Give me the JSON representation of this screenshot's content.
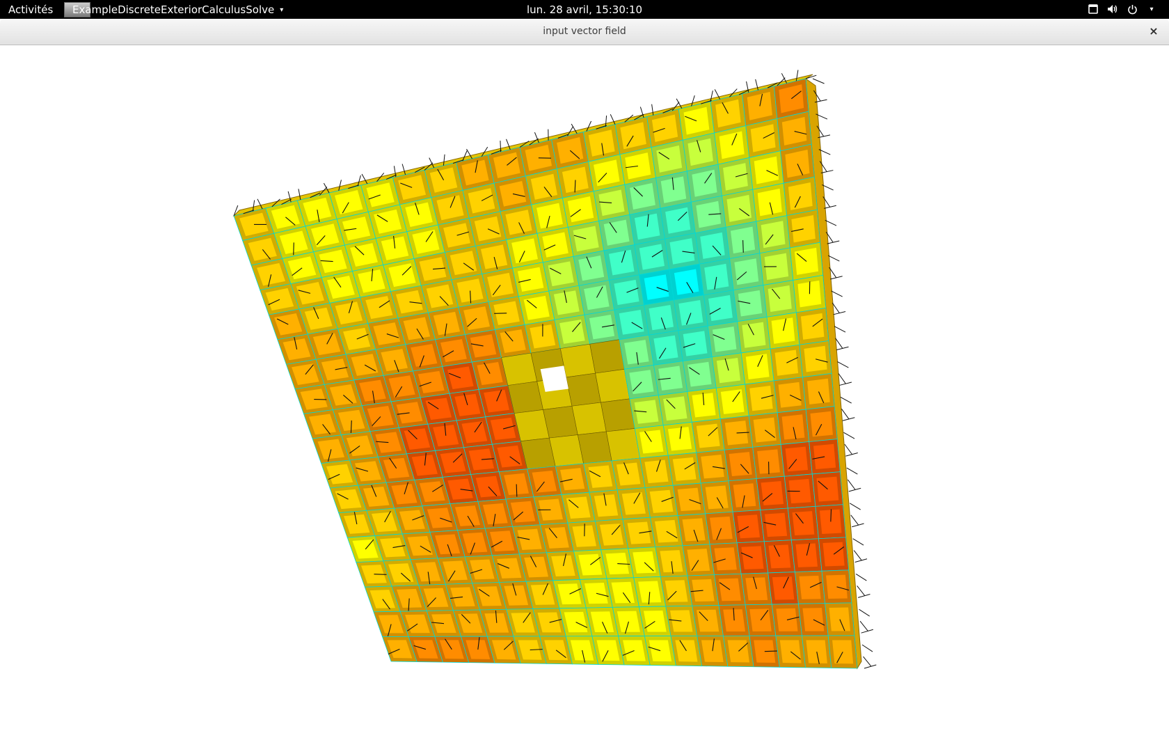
{
  "topbar": {
    "activities": "Activités",
    "app_name": "ExampleDiscreteExteriorCalculusSolve",
    "clock": "lun. 28 avril, 15:30:10",
    "caret": "▾"
  },
  "window": {
    "title": "input vector field",
    "close_glyph": "×"
  },
  "icons": [
    "window-overview-icon",
    "volume-icon",
    "power-icon",
    "chevron-down-icon",
    "close-icon"
  ],
  "colors": {
    "topbar": "#000000",
    "titlebar": "#e8e8e8",
    "palette": [
      "#ff2000",
      "#ff5a00",
      "#ff8c00",
      "#ffb000",
      "#ffd200",
      "#ffff00",
      "#c8ff3c",
      "#80ff90",
      "#40ffc8",
      "#00ffff"
    ],
    "edge": "#00d8d8",
    "vector": "#101010"
  }
}
